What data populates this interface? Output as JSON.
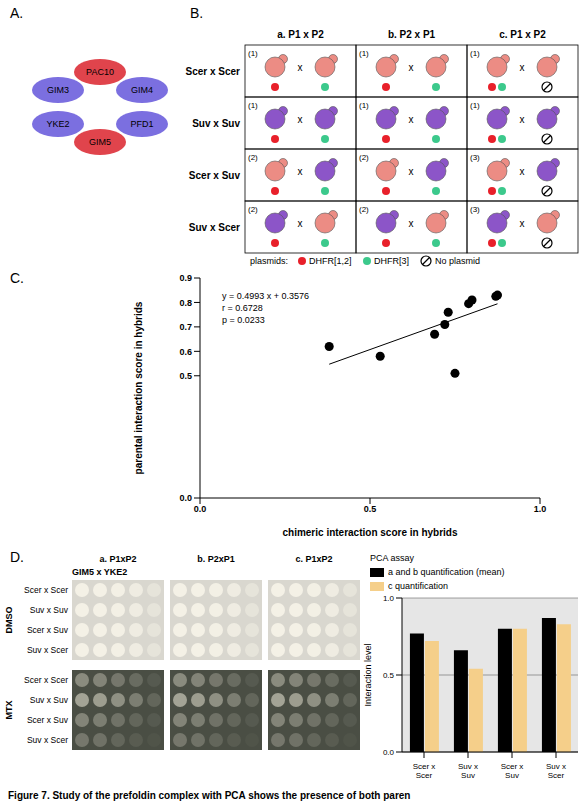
{
  "caption": "Figure 7. Study of the prefoldin complex with PCA shows the presence of both paren",
  "panel_a": {
    "letter": "A.",
    "nodes": [
      {
        "label": "GIM3",
        "color": "#7b6fe0"
      },
      {
        "label": "GIM4",
        "color": "#7b6fe0"
      },
      {
        "label": "YKE2",
        "color": "#7b6fe0"
      },
      {
        "label": "PFD1",
        "color": "#7b6fe0"
      },
      {
        "label": "PAC10",
        "color": "#e0444c"
      },
      {
        "label": "GIM5",
        "color": "#e0444c"
      }
    ]
  },
  "panel_b": {
    "letter": "B.",
    "columns": [
      "a. P1 x P2",
      "b. P2 x P1",
      "c. P1 x P2"
    ],
    "rows": [
      {
        "label": "Scer x Scer",
        "numbers": [
          "(1)",
          "(1)",
          "(1)"
        ]
      },
      {
        "label": "Suv x Suv",
        "numbers": [
          "(1)",
          "(1)",
          "(1)"
        ]
      },
      {
        "label": "Scer x Suv",
        "numbers": [
          "(2)",
          "(2)",
          "(3)"
        ]
      },
      {
        "label": "Suv x Scer",
        "numbers": [
          "(2)",
          "(2)",
          "(3)"
        ]
      }
    ],
    "species_colors": {
      "Scer": "#ec8c84",
      "Suv": "#8c55c8"
    },
    "plasmid_legend": {
      "title": "plasmids:",
      "items": [
        {
          "label": "DHFR[1,2]",
          "color": "#e8202a"
        },
        {
          "label": "DHFR[3]",
          "color": "#3cc98c"
        },
        {
          "label": "No plasmid"
        }
      ]
    }
  },
  "chart_data": [
    {
      "letter": "C.",
      "type": "scatter",
      "x_label": "chimeric interaction score in hybrids",
      "y_label": "parental interaction score in hybrids",
      "x": [
        0.38,
        0.53,
        0.69,
        0.72,
        0.73,
        0.75,
        0.79,
        0.8,
        0.87,
        0.875
      ],
      "y": [
        0.62,
        0.58,
        0.67,
        0.71,
        0.76,
        0.51,
        0.795,
        0.81,
        0.825,
        0.83
      ],
      "color": "#000000",
      "xlim": [
        0,
        1
      ],
      "ylim": [
        0,
        0.9
      ],
      "xticks": [
        {
          "value": 0,
          "label": "0.0"
        },
        0.5,
        {
          "value": 1,
          "label": "1.0"
        }
      ],
      "yticks": [
        {
          "value": 0,
          "label": "0.0"
        },
        0.5,
        0.6,
        0.7,
        0.8,
        0.9
      ],
      "annotations": [
        "y = 0.4993 x + 0.3576",
        "r = 0.6728",
        "p = 0.0233"
      ],
      "fit": {
        "slope": 0.4993,
        "intercept": 0.3576
      }
    },
    {
      "type": "bar",
      "title": "PCA assay",
      "categories": [
        "Scer x Scer",
        "Suv x Suv",
        "Scer x Suv",
        "Suv x Scer"
      ],
      "series": [
        {
          "name": "a and b quantification (mean)",
          "color": "#000000",
          "values": [
            0.77,
            0.66,
            0.8,
            0.87
          ]
        },
        {
          "name": "c quantification",
          "color": "#f5cf8a",
          "values": [
            0.72,
            0.54,
            0.8,
            0.83
          ]
        }
      ],
      "y_label": "Interaction level",
      "ylim": [
        0,
        1
      ],
      "yticks": [
        {
          "value": 0,
          "label": "0.0"
        },
        0.5,
        {
          "value": 1,
          "label": "1.0"
        }
      ],
      "grid": true,
      "legend": "top"
    }
  ],
  "panel_d_spots": {
    "letter": "D.",
    "title": "GIM5 x YKE2",
    "columns": [
      "a. P1xP2",
      "b. P2xP1",
      "c. P1xP2"
    ],
    "conditions": [
      "DMSO",
      "MTX"
    ],
    "rows": [
      "Scer x Scer",
      "Suv x Suv",
      "Scer x Suv",
      "Suv x Scer"
    ]
  }
}
